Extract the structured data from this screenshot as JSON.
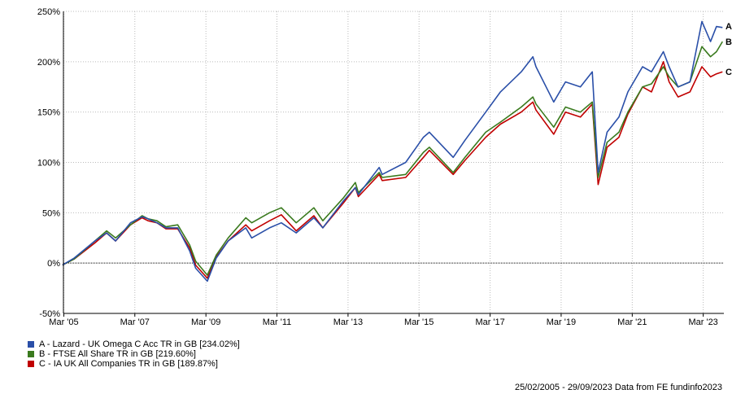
{
  "chart_data": {
    "type": "line",
    "title": "",
    "xlabel": "",
    "ylabel": "",
    "x_ticks": [
      "Mar '05",
      "Mar '07",
      "Mar '09",
      "Mar '11",
      "Mar '13",
      "Mar '15",
      "Mar '17",
      "Mar '19",
      "Mar '21",
      "Mar '23"
    ],
    "y_ticks": [
      "250%",
      "200%",
      "150%",
      "100%",
      "50%",
      "0%",
      "-50%"
    ],
    "ylim": [
      -50,
      250
    ],
    "xlim": [
      "2005-02-25",
      "2023-09-29"
    ],
    "grid": true,
    "legend_position": "bottom-left",
    "x": [
      "2005-02",
      "2005-06",
      "2006-01",
      "2006-05",
      "2006-08",
      "2007-01",
      "2007-05",
      "2007-07",
      "2007-10",
      "2008-01",
      "2008-05",
      "2008-09",
      "2008-11",
      "2009-03",
      "2009-06",
      "2009-10",
      "2010-04",
      "2010-06",
      "2010-12",
      "2011-04",
      "2011-09",
      "2012-03",
      "2012-06",
      "2013-01",
      "2013-05",
      "2013-06",
      "2014-01",
      "2014-02",
      "2014-10",
      "2015-04",
      "2015-06",
      "2016-02",
      "2016-06",
      "2017-01",
      "2017-06",
      "2018-01",
      "2018-05",
      "2018-06",
      "2018-12",
      "2019-04",
      "2019-09",
      "2020-01",
      "2020-03",
      "2020-06",
      "2020-10",
      "2021-01",
      "2021-06",
      "2021-09",
      "2022-01",
      "2022-03",
      "2022-06",
      "2022-10",
      "2023-02",
      "2023-05",
      "2023-07",
      "2023-09"
    ],
    "series": [
      {
        "name": "A - Lazard - UK Omega C Acc TR in GB [234.02%]",
        "end_label": "A",
        "color": "#2a4fa8",
        "values": [
          -2,
          5,
          22,
          30,
          22,
          40,
          46,
          44,
          40,
          35,
          35,
          12,
          -5,
          -18,
          5,
          22,
          35,
          25,
          35,
          40,
          30,
          45,
          35,
          62,
          75,
          68,
          95,
          88,
          100,
          125,
          130,
          105,
          122,
          150,
          170,
          190,
          205,
          195,
          160,
          180,
          175,
          190,
          90,
          130,
          145,
          170,
          195,
          190,
          210,
          195,
          175,
          180,
          240,
          220,
          235,
          234
        ]
      },
      {
        "name": "B - FTSE All Share TR in GB [219.60%]",
        "end_label": "B",
        "color": "#3a7a1e",
        "values": [
          -2,
          4,
          22,
          32,
          25,
          38,
          47,
          44,
          42,
          36,
          38,
          18,
          2,
          -12,
          8,
          25,
          45,
          40,
          50,
          55,
          40,
          55,
          42,
          65,
          80,
          70,
          90,
          85,
          88,
          110,
          115,
          90,
          105,
          130,
          140,
          155,
          165,
          158,
          135,
          155,
          150,
          160,
          85,
          120,
          130,
          150,
          175,
          178,
          195,
          185,
          175,
          180,
          215,
          205,
          210,
          220
        ]
      },
      {
        "name": "C - IA UK All Companies TR in GB [189.87%]",
        "end_label": "C",
        "color": "#c00000",
        "values": [
          -2,
          4,
          20,
          30,
          22,
          38,
          45,
          42,
          40,
          34,
          34,
          15,
          -2,
          -15,
          6,
          22,
          38,
          32,
          42,
          48,
          32,
          47,
          35,
          60,
          75,
          66,
          88,
          82,
          85,
          105,
          112,
          88,
          102,
          125,
          138,
          150,
          160,
          152,
          128,
          150,
          145,
          158,
          78,
          115,
          125,
          148,
          175,
          170,
          200,
          180,
          165,
          170,
          195,
          185,
          188,
          190
        ]
      }
    ]
  },
  "footer": {
    "date_range": "25/02/2005 - 29/09/2023 Data from FE fundinfo2023"
  }
}
